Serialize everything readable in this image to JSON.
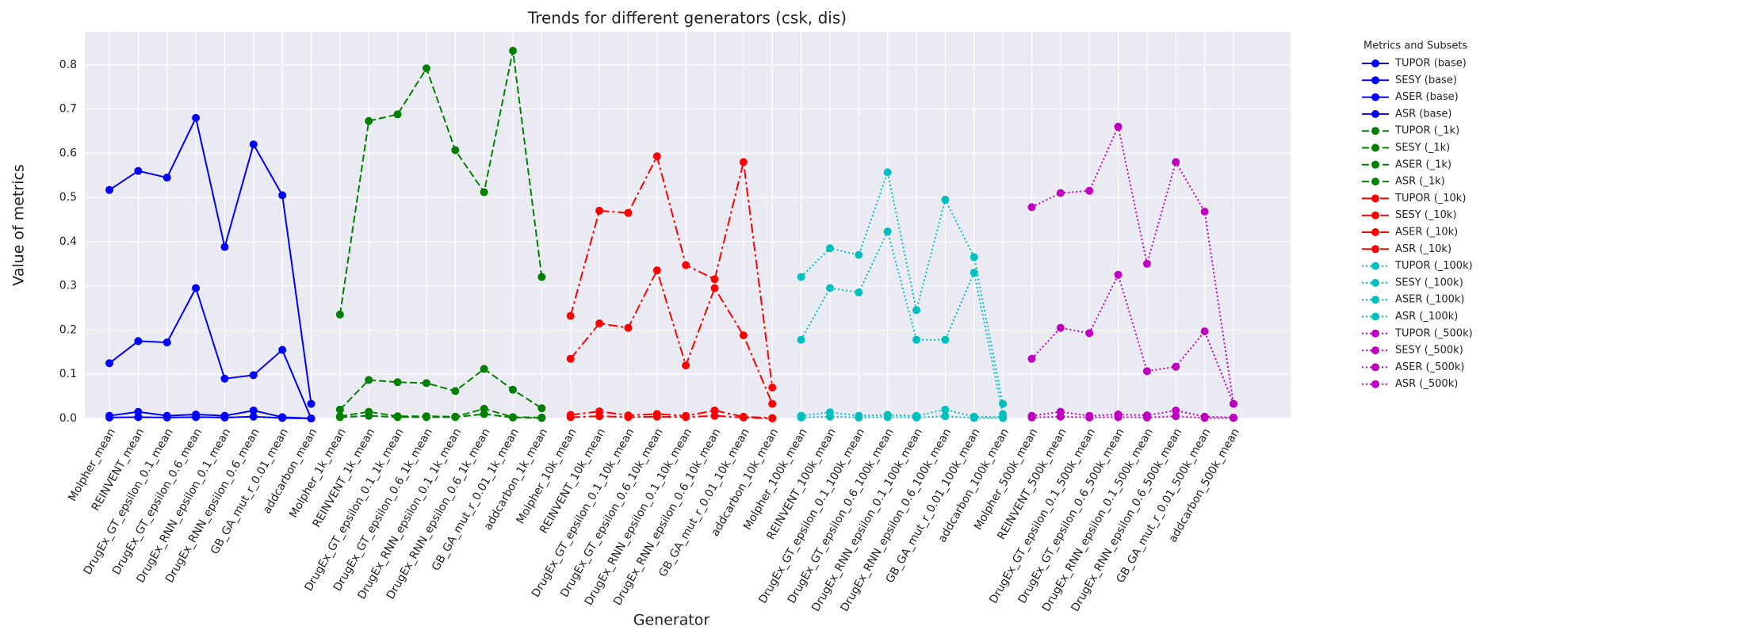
{
  "chart_data": {
    "type": "line",
    "title": "Trends for different generators (csk, dis)",
    "xlabel": "Generator",
    "ylabel": "Value of metrics",
    "legend_title": "Metrics and Subsets",
    "legend": "outside right",
    "grid": true,
    "categories": [
      "Molpher_mean",
      "REINVENT_mean",
      "DrugEx_GT_epsilon_0.1_mean",
      "DrugEx_GT_epsilon_0.6_mean",
      "DrugEx_RNN_epsilon_0.1_mean",
      "DrugEx_RNN_epsilon_0.6_mean",
      "GB_GA_mut_r_0.01_mean",
      "addcarbon_mean",
      "Molpher_1k_mean",
      "REINVENT_1k_mean",
      "DrugEx_GT_epsilon_0.1_1k_mean",
      "DrugEx_GT_epsilon_0.6_1k_mean",
      "DrugEx_RNN_epsilon_0.1_1k_mean",
      "DrugEx_RNN_epsilon_0.6_1k_mean",
      "GB_GA_mut_r_0.01_1k_mean",
      "addcarbon_1k_mean",
      "Molpher_10k_mean",
      "REINVENT_10k_mean",
      "DrugEx_GT_epsilon_0.1_10k_mean",
      "DrugEx_GT_epsilon_0.6_10k_mean",
      "DrugEx_RNN_epsilon_0.1_10k_mean",
      "DrugEx_RNN_epsilon_0.6_10k_mean",
      "GB_GA_mut_r_0.01_10k_mean",
      "addcarbon_10k_mean",
      "Molpher_100k_mean",
      "REINVENT_100k_mean",
      "DrugEx_GT_epsilon_0.1_100k_mean",
      "DrugEx_GT_epsilon_0.6_100k_mean",
      "DrugEx_RNN_epsilon_0.1_100k_mean",
      "DrugEx_RNN_epsilon_0.6_100k_mean",
      "GB_GA_mut_r_0.01_100k_mean",
      "addcarbon_100k_mean",
      "Molpher_500k_mean",
      "REINVENT_500k_mean",
      "DrugEx_GT_epsilon_0.1_500k_mean",
      "DrugEx_GT_epsilon_0.6_500k_mean",
      "DrugEx_RNN_epsilon_0.1_500k_mean",
      "DrugEx_RNN_epsilon_0.6_500k_mean",
      "GB_GA_mut_r_0.01_500k_mean",
      "addcarbon_500k_mean"
    ],
    "ylim": [
      0,
      0.875
    ],
    "yticks": [
      {
        "value": 0,
        "label": "0.0"
      },
      0.1,
      0.2,
      0.3,
      0.4,
      0.5,
      0.6,
      0.7,
      0.8
    ],
    "series": [
      {
        "name": "TUPOR (base)",
        "color": "#0000ff",
        "dash": "solid",
        "values": [
          0.517,
          0.56,
          0.545,
          0.68,
          0.388,
          0.62,
          0.505,
          0.033,
          null,
          null,
          null,
          null,
          null,
          null,
          null,
          null,
          null,
          null,
          null,
          null,
          null,
          null,
          null,
          null,
          null,
          null,
          null,
          null,
          null,
          null,
          null,
          null,
          null,
          null,
          null,
          null,
          null,
          null,
          null,
          null
        ]
      },
      {
        "name": "SESY (base)",
        "color": "#0000ff",
        "dash": "solid",
        "values": [
          0.125,
          0.175,
          0.172,
          0.295,
          0.09,
          0.098,
          0.155,
          0.0,
          null,
          null,
          null,
          null,
          null,
          null,
          null,
          null,
          null,
          null,
          null,
          null,
          null,
          null,
          null,
          null,
          null,
          null,
          null,
          null,
          null,
          null,
          null,
          null,
          null,
          null,
          null,
          null,
          null,
          null,
          null,
          null
        ]
      },
      {
        "name": "ASER (base)",
        "color": "#0000ff",
        "dash": "solid",
        "values": [
          0.006,
          0.015,
          0.006,
          0.009,
          0.006,
          0.018,
          0.003,
          0.0,
          null,
          null,
          null,
          null,
          null,
          null,
          null,
          null,
          null,
          null,
          null,
          null,
          null,
          null,
          null,
          null,
          null,
          null,
          null,
          null,
          null,
          null,
          null,
          null,
          null,
          null,
          null,
          null,
          null,
          null,
          null,
          null
        ]
      },
      {
        "name": "ASR (base)",
        "color": "#0000ff",
        "dash": "solid",
        "values": [
          0.002,
          0.003,
          0.002,
          0.003,
          0.002,
          0.004,
          0.001,
          0.0,
          null,
          null,
          null,
          null,
          null,
          null,
          null,
          null,
          null,
          null,
          null,
          null,
          null,
          null,
          null,
          null,
          null,
          null,
          null,
          null,
          null,
          null,
          null,
          null,
          null,
          null,
          null,
          null,
          null,
          null,
          null,
          null
        ]
      },
      {
        "name": "TUPOR (_1k)",
        "color": "#008000",
        "dash": "dashed",
        "values": [
          null,
          null,
          null,
          null,
          null,
          null,
          null,
          null,
          0.235,
          0.673,
          0.688,
          0.792,
          0.607,
          0.512,
          0.832,
          0.32,
          null,
          null,
          null,
          null,
          null,
          null,
          null,
          null,
          null,
          null,
          null,
          null,
          null,
          null,
          null,
          null,
          null,
          null,
          null,
          null,
          null,
          null,
          null,
          null
        ]
      },
      {
        "name": "SESY (_1k)",
        "color": "#008000",
        "dash": "dashed",
        "values": [
          null,
          null,
          null,
          null,
          null,
          null,
          null,
          null,
          0.02,
          0.087,
          0.082,
          0.08,
          0.062,
          0.112,
          0.065,
          0.023,
          null,
          null,
          null,
          null,
          null,
          null,
          null,
          null,
          null,
          null,
          null,
          null,
          null,
          null,
          null,
          null,
          null,
          null,
          null,
          null,
          null,
          null,
          null,
          null
        ]
      },
      {
        "name": "ASER (_1k)",
        "color": "#008000",
        "dash": "dashed",
        "values": [
          null,
          null,
          null,
          null,
          null,
          null,
          null,
          null,
          0.005,
          0.015,
          0.005,
          0.005,
          0.004,
          0.022,
          0.003,
          0.002,
          null,
          null,
          null,
          null,
          null,
          null,
          null,
          null,
          null,
          null,
          null,
          null,
          null,
          null,
          null,
          null,
          null,
          null,
          null,
          null,
          null,
          null,
          null,
          null
        ]
      },
      {
        "name": "ASR (_1k)",
        "color": "#008000",
        "dash": "dashed",
        "values": [
          null,
          null,
          null,
          null,
          null,
          null,
          null,
          null,
          0.003,
          0.006,
          0.003,
          0.003,
          0.003,
          0.01,
          0.002,
          0.001,
          null,
          null,
          null,
          null,
          null,
          null,
          null,
          null,
          null,
          null,
          null,
          null,
          null,
          null,
          null,
          null,
          null,
          null,
          null,
          null,
          null,
          null,
          null,
          null
        ]
      },
      {
        "name": "TUPOR (_10k)",
        "color": "#ff0000",
        "dash": "dashdot",
        "values": [
          null,
          null,
          null,
          null,
          null,
          null,
          null,
          null,
          null,
          null,
          null,
          null,
          null,
          null,
          null,
          null,
          0.232,
          0.47,
          0.465,
          0.593,
          0.347,
          0.315,
          0.58,
          0.07,
          null,
          null,
          null,
          null,
          null,
          null,
          null,
          null,
          null,
          null,
          null,
          null,
          null,
          null,
          null,
          null
        ]
      },
      {
        "name": "SESY (_10k)",
        "color": "#ff0000",
        "dash": "dashdot",
        "values": [
          null,
          null,
          null,
          null,
          null,
          null,
          null,
          null,
          null,
          null,
          null,
          null,
          null,
          null,
          null,
          null,
          0.135,
          0.215,
          0.205,
          0.335,
          0.12,
          0.295,
          0.188,
          0.033,
          null,
          null,
          null,
          null,
          null,
          null,
          null,
          null,
          null,
          null,
          null,
          null,
          null,
          null,
          null,
          null
        ]
      },
      {
        "name": "ASER (_10k)",
        "color": "#ff0000",
        "dash": "dashdot",
        "values": [
          null,
          null,
          null,
          null,
          null,
          null,
          null,
          null,
          null,
          null,
          null,
          null,
          null,
          null,
          null,
          null,
          0.008,
          0.016,
          0.007,
          0.01,
          0.006,
          0.018,
          0.004,
          0.001,
          null,
          null,
          null,
          null,
          null,
          null,
          null,
          null,
          null,
          null,
          null,
          null,
          null,
          null,
          null,
          null
        ]
      },
      {
        "name": "ASR (_10k)",
        "color": "#ff0000",
        "dash": "dashdot",
        "values": [
          null,
          null,
          null,
          null,
          null,
          null,
          null,
          null,
          null,
          null,
          null,
          null,
          null,
          null,
          null,
          null,
          0.003,
          0.005,
          0.003,
          0.004,
          0.003,
          0.006,
          0.002,
          0.0,
          null,
          null,
          null,
          null,
          null,
          null,
          null,
          null,
          null,
          null,
          null,
          null,
          null,
          null,
          null,
          null
        ]
      },
      {
        "name": "TUPOR (_100k)",
        "color": "#00bfbf",
        "dash": "dotted",
        "values": [
          null,
          null,
          null,
          null,
          null,
          null,
          null,
          null,
          null,
          null,
          null,
          null,
          null,
          null,
          null,
          null,
          null,
          null,
          null,
          null,
          null,
          null,
          null,
          null,
          0.32,
          0.385,
          0.37,
          0.557,
          0.245,
          0.495,
          0.365,
          0.033,
          null,
          null,
          null,
          null,
          null,
          null,
          null,
          null
        ]
      },
      {
        "name": "SESY (_100k)",
        "color": "#00bfbf",
        "dash": "dotted",
        "values": [
          null,
          null,
          null,
          null,
          null,
          null,
          null,
          null,
          null,
          null,
          null,
          null,
          null,
          null,
          null,
          null,
          null,
          null,
          null,
          null,
          null,
          null,
          null,
          null,
          0.178,
          0.295,
          0.285,
          0.423,
          0.178,
          0.178,
          0.33,
          0.01,
          null,
          null,
          null,
          null,
          null,
          null,
          null,
          null
        ]
      },
      {
        "name": "ASER (_100k)",
        "color": "#00bfbf",
        "dash": "dotted",
        "values": [
          null,
          null,
          null,
          null,
          null,
          null,
          null,
          null,
          null,
          null,
          null,
          null,
          null,
          null,
          null,
          null,
          null,
          null,
          null,
          null,
          null,
          null,
          null,
          null,
          0.006,
          0.014,
          0.006,
          0.008,
          0.006,
          0.02,
          0.004,
          0.003,
          null,
          null,
          null,
          null,
          null,
          null,
          null,
          null
        ]
      },
      {
        "name": "ASR (_100k)",
        "color": "#00bfbf",
        "dash": "dotted",
        "values": [
          null,
          null,
          null,
          null,
          null,
          null,
          null,
          null,
          null,
          null,
          null,
          null,
          null,
          null,
          null,
          null,
          null,
          null,
          null,
          null,
          null,
          null,
          null,
          null,
          0.002,
          0.004,
          0.002,
          0.003,
          0.002,
          0.005,
          0.001,
          0.001,
          null,
          null,
          null,
          null,
          null,
          null,
          null,
          null
        ]
      },
      {
        "name": "TUPOR (_500k)",
        "color": "#bf00bf",
        "dash": "dotted",
        "values": [
          null,
          null,
          null,
          null,
          null,
          null,
          null,
          null,
          null,
          null,
          null,
          null,
          null,
          null,
          null,
          null,
          null,
          null,
          null,
          null,
          null,
          null,
          null,
          null,
          null,
          null,
          null,
          null,
          null,
          null,
          null,
          null,
          0.478,
          0.51,
          0.515,
          0.66,
          0.35,
          0.58,
          0.468,
          0.033
        ]
      },
      {
        "name": "SESY (_500k)",
        "color": "#bf00bf",
        "dash": "dotted",
        "values": [
          null,
          null,
          null,
          null,
          null,
          null,
          null,
          null,
          null,
          null,
          null,
          null,
          null,
          null,
          null,
          null,
          null,
          null,
          null,
          null,
          null,
          null,
          null,
          null,
          null,
          null,
          null,
          null,
          null,
          null,
          null,
          null,
          0.135,
          0.205,
          0.193,
          0.325,
          0.107,
          0.117,
          0.197,
          0.033
        ]
      },
      {
        "name": "ASER (_500k)",
        "color": "#bf00bf",
        "dash": "dotted",
        "values": [
          null,
          null,
          null,
          null,
          null,
          null,
          null,
          null,
          null,
          null,
          null,
          null,
          null,
          null,
          null,
          null,
          null,
          null,
          null,
          null,
          null,
          null,
          null,
          null,
          null,
          null,
          null,
          null,
          null,
          null,
          null,
          null,
          0.006,
          0.015,
          0.006,
          0.009,
          0.007,
          0.018,
          0.004,
          0.002
        ]
      },
      {
        "name": "ASR (_500k)",
        "color": "#bf00bf",
        "dash": "dotted",
        "values": [
          null,
          null,
          null,
          null,
          null,
          null,
          null,
          null,
          null,
          null,
          null,
          null,
          null,
          null,
          null,
          null,
          null,
          null,
          null,
          null,
          null,
          null,
          null,
          null,
          null,
          null,
          null,
          null,
          null,
          null,
          null,
          null,
          0.002,
          0.004,
          0.002,
          0.003,
          0.002,
          0.005,
          0.001,
          0.001
        ]
      }
    ]
  }
}
